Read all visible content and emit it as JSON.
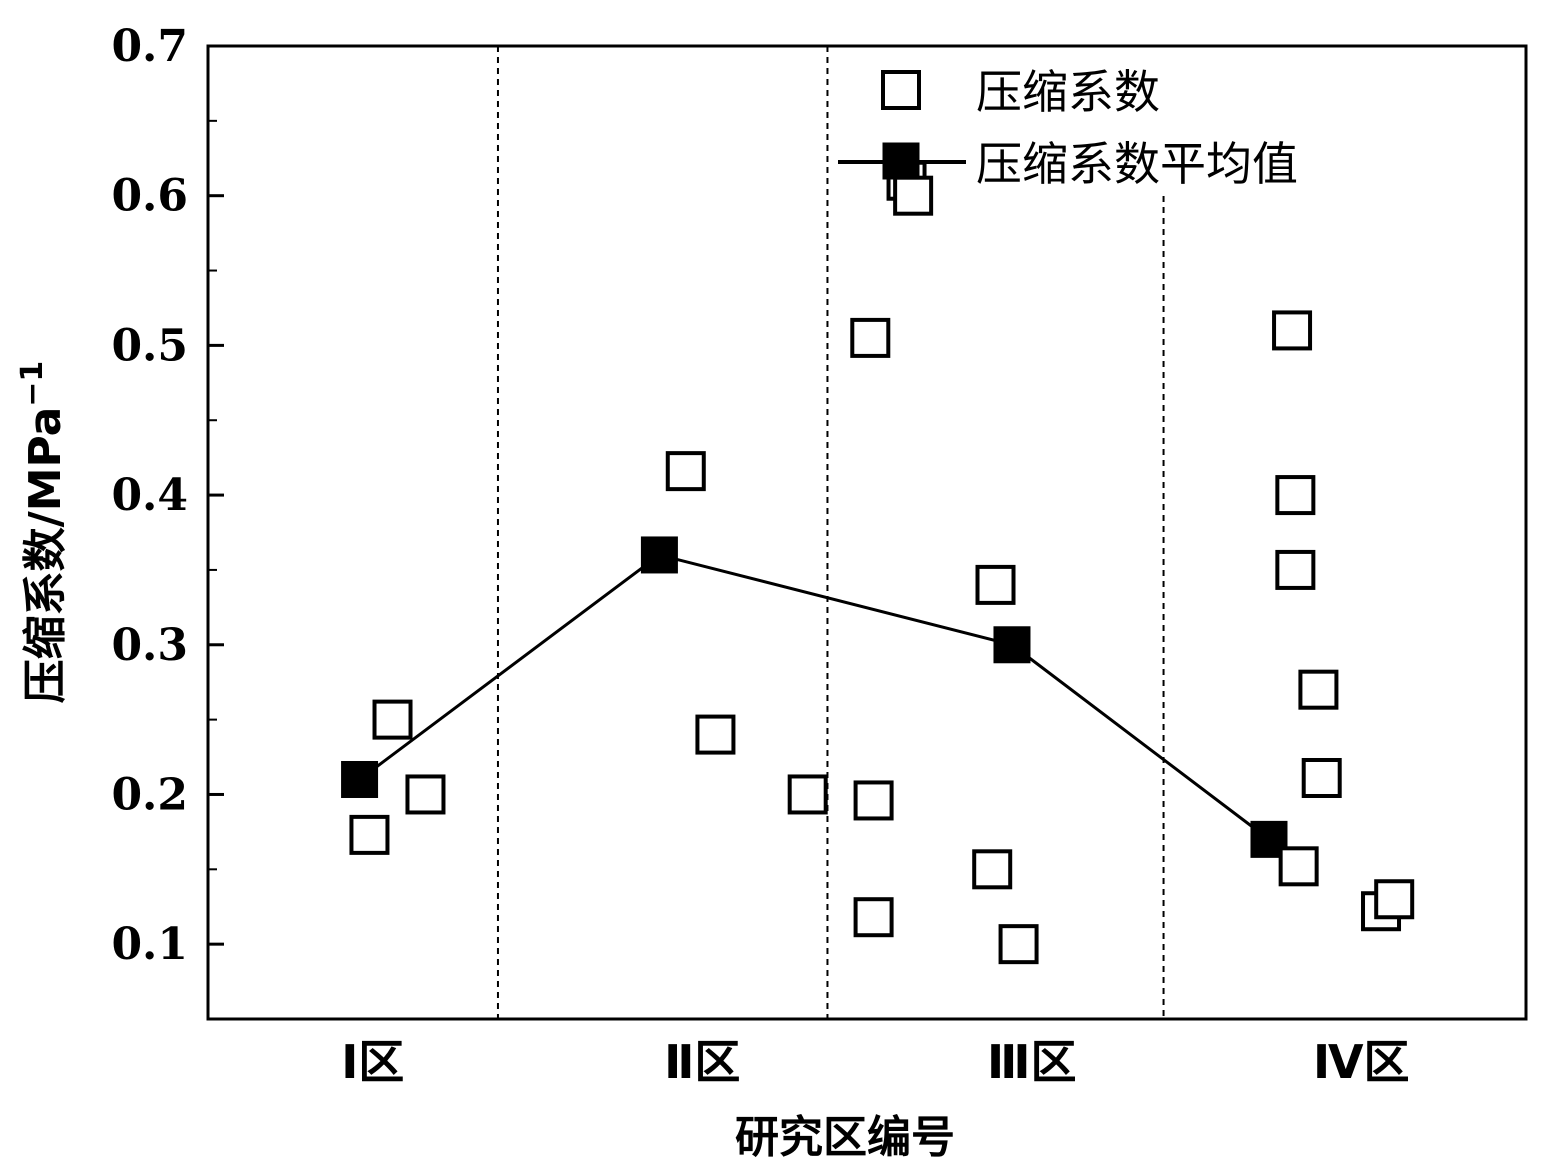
{
  "chart_data": {
    "type": "scatter",
    "title": "",
    "xlabel": "研究区编号",
    "ylabel": "压缩系数/MPa",
    "ylabel_sup": "−1",
    "ylim": [
      0.05,
      0.7
    ],
    "yticks": [
      0.1,
      0.2,
      0.3,
      0.4,
      0.5,
      0.6,
      0.7
    ],
    "ytick_labels": [
      "0.1",
      "0.2",
      "0.3",
      "0.4",
      "0.5",
      "0.6",
      "0.7"
    ],
    "xlim": [
      0.5,
      4.5
    ],
    "categories": [
      "Ⅰ区",
      "Ⅱ区",
      "Ⅲ区",
      "Ⅳ区"
    ],
    "category_positions": [
      1,
      2,
      3,
      4
    ],
    "zone_dividers": [
      1.38,
      2.38,
      3.4
    ],
    "grid": false,
    "legend_position": "top-right",
    "series": [
      {
        "name": "压缩系数",
        "marker": "open-square",
        "x": [
          1.06,
          0.99,
          1.16,
          1.95,
          2.04,
          2.32,
          2.51,
          2.52,
          2.52,
          2.62,
          2.64,
          2.89,
          2.88,
          2.96,
          3.79,
          3.8,
          3.8,
          3.87,
          3.88,
          3.81,
          4.06,
          4.1
        ],
        "y": [
          0.25,
          0.173,
          0.2,
          0.416,
          0.24,
          0.2,
          0.505,
          0.196,
          0.118,
          0.61,
          0.6,
          0.34,
          0.15,
          0.1,
          0.51,
          0.4,
          0.35,
          0.27,
          0.211,
          0.152,
          0.122,
          0.13
        ]
      },
      {
        "name": "压缩系数平均值",
        "marker": "filled-square-line",
        "x": [
          0.96,
          1.87,
          2.94,
          3.72
        ],
        "y": [
          0.21,
          0.36,
          0.3,
          0.17
        ]
      }
    ]
  }
}
